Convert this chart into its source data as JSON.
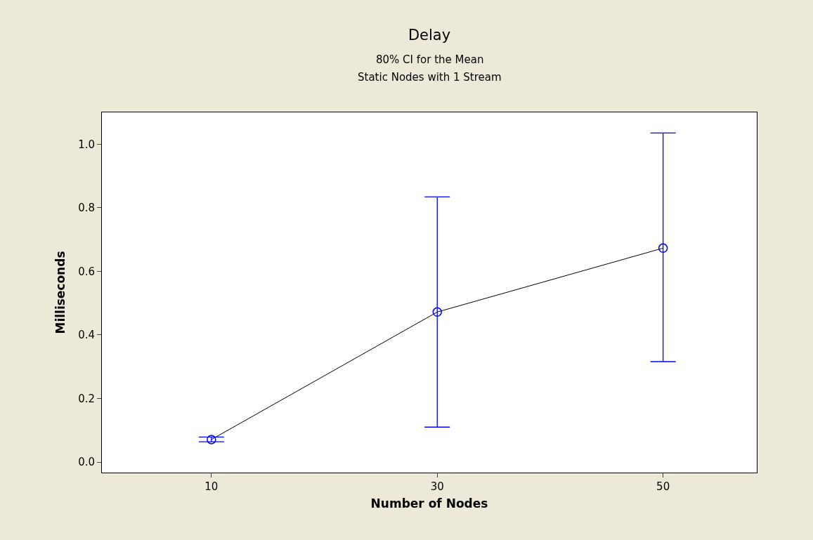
{
  "chart_data": {
    "type": "line",
    "title": "Delay",
    "subtitle": "80% CI for the Mean\nStatic Nodes with 1 Stream",
    "xlabel": "Number of Nodes",
    "ylabel": "Milliseconds",
    "x": [
      10,
      30,
      50
    ],
    "series": [
      {
        "color": "#0000ff",
        "values": [
          0.071,
          0.472,
          0.673
        ],
        "errors": [
          [
            0.064,
            0.079
          ],
          [
            0.11,
            0.834
          ],
          [
            0.316,
            1.035
          ]
        ]
      }
    ],
    "xlim": [
      0.3,
      58.3
    ],
    "xticks": [
      10,
      30,
      50
    ],
    "ylim": [
      -0.033,
      1.1
    ],
    "yticks": [
      {
        "value": 0,
        "label": "0.0"
      },
      {
        "value": 0.2,
        "label": "0.2"
      },
      {
        "value": 0.4,
        "label": "0.4"
      },
      {
        "value": 0.6,
        "label": "0.6"
      },
      {
        "value": 0.8,
        "label": "0.8"
      },
      {
        "value": 1,
        "label": "1.0"
      }
    ],
    "grid": false,
    "marker": "circle",
    "line_style": "solid"
  }
}
